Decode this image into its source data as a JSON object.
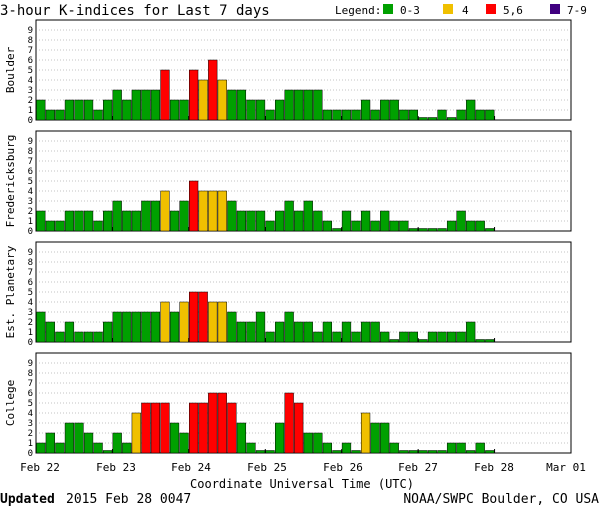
{
  "title": "3-hour K-indices for Last 7 days",
  "legend": {
    "label": "Legend:",
    "items": [
      {
        "label": "0-3",
        "color": "#00a000"
      },
      {
        "label": "4",
        "color": "#f0c000"
      },
      {
        "label": "5,6",
        "color": "#ff0000"
      },
      {
        "label": "7-9",
        "color": "#400080"
      }
    ]
  },
  "x_axis": {
    "label": "Coordinate Universal Time (UTC)",
    "ticks": [
      "Feb 22",
      "Feb 23",
      "Feb 24",
      "Feb 25",
      "Feb 26",
      "Feb 27",
      "Feb 28",
      "Mar 01"
    ]
  },
  "footer": {
    "updated_label": "Updated",
    "updated_value": "2015 Feb 28 0047",
    "credit": "NOAA/SWPC Boulder, CO USA"
  },
  "chart_data": {
    "type": "bar",
    "ylim": [
      0,
      9
    ],
    "y_ticks": [
      "0",
      "1",
      "2",
      "3",
      "4",
      "5",
      "6",
      "7",
      "8",
      "9"
    ],
    "bins_per_day": 8,
    "days": 7,
    "series": [
      {
        "name": "Boulder",
        "values": [
          2,
          1,
          1,
          2,
          2,
          2,
          1,
          2,
          3,
          2,
          3,
          3,
          3,
          5,
          2,
          2,
          5,
          4,
          6,
          4,
          3,
          3,
          2,
          2,
          1,
          2,
          3,
          3,
          3,
          3,
          1,
          1,
          1,
          1,
          2,
          1,
          2,
          2,
          1,
          1,
          0,
          0,
          1,
          0,
          1,
          2,
          1,
          1
        ]
      },
      {
        "name": "Fredericksburg",
        "values": [
          2,
          1,
          1,
          2,
          2,
          2,
          1,
          2,
          3,
          2,
          2,
          3,
          3,
          4,
          2,
          3,
          5,
          4,
          4,
          4,
          3,
          2,
          2,
          2,
          1,
          2,
          3,
          2,
          3,
          2,
          1,
          0,
          2,
          1,
          2,
          1,
          2,
          1,
          1,
          0,
          0,
          0,
          0,
          1,
          2,
          1,
          1,
          0
        ]
      },
      {
        "name": "Est. Planetary",
        "values": [
          3,
          2,
          1,
          2,
          1,
          1,
          1,
          2,
          3,
          3,
          3,
          3,
          3,
          4,
          3,
          4,
          5,
          5,
          4,
          4,
          3,
          2,
          2,
          3,
          1,
          2,
          3,
          2,
          2,
          1,
          2,
          1,
          2,
          1,
          2,
          2,
          1,
          0,
          1,
          1,
          0,
          1,
          1,
          1,
          1,
          2,
          0,
          0
        ]
      },
      {
        "name": "College",
        "values": [
          1,
          2,
          1,
          3,
          3,
          2,
          1,
          0,
          2,
          1,
          4,
          5,
          5,
          5,
          3,
          2,
          5,
          5,
          6,
          6,
          5,
          3,
          1,
          0,
          0,
          3,
          6,
          5,
          2,
          2,
          1,
          0,
          1,
          0,
          4,
          3,
          3,
          1,
          0,
          0,
          0,
          0,
          0,
          1,
          1,
          0,
          1,
          0
        ]
      }
    ]
  }
}
